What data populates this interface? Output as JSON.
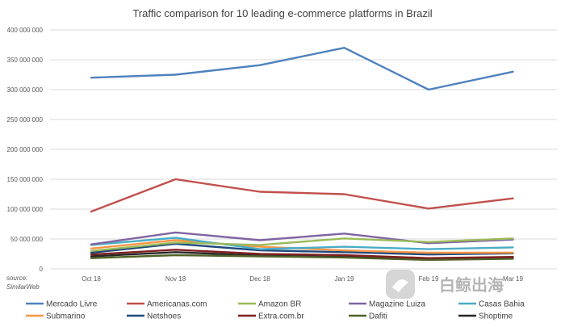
{
  "chart_data": {
    "type": "line",
    "title": "Traffic comparison for 10 leading e-commerce platforms in Brazil",
    "xlabel": "",
    "ylabel": "",
    "categories": [
      "Oct 18",
      "Nov 18",
      "Dec 18",
      "Jan 19",
      "Feb 19",
      "Mar 19"
    ],
    "ylim": [
      0,
      400000000
    ],
    "yticks": [
      0,
      50000000,
      100000000,
      150000000,
      200000000,
      250000000,
      300000000,
      350000000,
      400000000
    ],
    "ytick_labels": [
      "0",
      "50 000 000",
      "100 000 000",
      "150 000 000",
      "200 000 000",
      "250 000 000",
      "300 000 000",
      "350 000 000",
      "400 000 000"
    ],
    "grid": true,
    "legend_position": "bottom",
    "series": [
      {
        "name": "Mercado Livre",
        "color": "#4f81bd",
        "values": [
          320000000,
          325000000,
          341000000,
          370000000,
          300000000,
          330000000
        ]
      },
      {
        "name": "Americanas.com",
        "color": "#c0504d",
        "values": [
          96000000,
          150000000,
          129000000,
          125000000,
          101000000,
          118000000
        ]
      },
      {
        "name": "Amazon BR",
        "color": "#9bbb59",
        "values": [
          30000000,
          44000000,
          40000000,
          51000000,
          45000000,
          51000000
        ]
      },
      {
        "name": "Magazine Luiza",
        "color": "#8064a2",
        "values": [
          41000000,
          61000000,
          48000000,
          59000000,
          43000000,
          49000000
        ]
      },
      {
        "name": "Casas Bahia",
        "color": "#4bacc6",
        "values": [
          40000000,
          52000000,
          33000000,
          37000000,
          33000000,
          36000000
        ]
      },
      {
        "name": "Submarino",
        "color": "#f79646",
        "values": [
          34000000,
          48000000,
          37000000,
          31000000,
          27000000,
          27000000
        ]
      },
      {
        "name": "Netshoes",
        "color": "#1f497d",
        "values": [
          27000000,
          42000000,
          31000000,
          28000000,
          24000000,
          26000000
        ]
      },
      {
        "name": "Extra.com.br",
        "color": "#7f1f1f",
        "values": [
          24000000,
          32000000,
          25000000,
          23000000,
          18000000,
          20000000
        ]
      },
      {
        "name": "Dafiti",
        "color": "#4f6228",
        "values": [
          18000000,
          23000000,
          21000000,
          19000000,
          15000000,
          17000000
        ]
      },
      {
        "name": "Shoptime",
        "color": "#262626",
        "values": [
          21000000,
          28000000,
          22000000,
          20000000,
          16000000,
          18000000
        ]
      }
    ],
    "source_note": "source: SimilarWeb",
    "watermark": "白鲸出海"
  }
}
